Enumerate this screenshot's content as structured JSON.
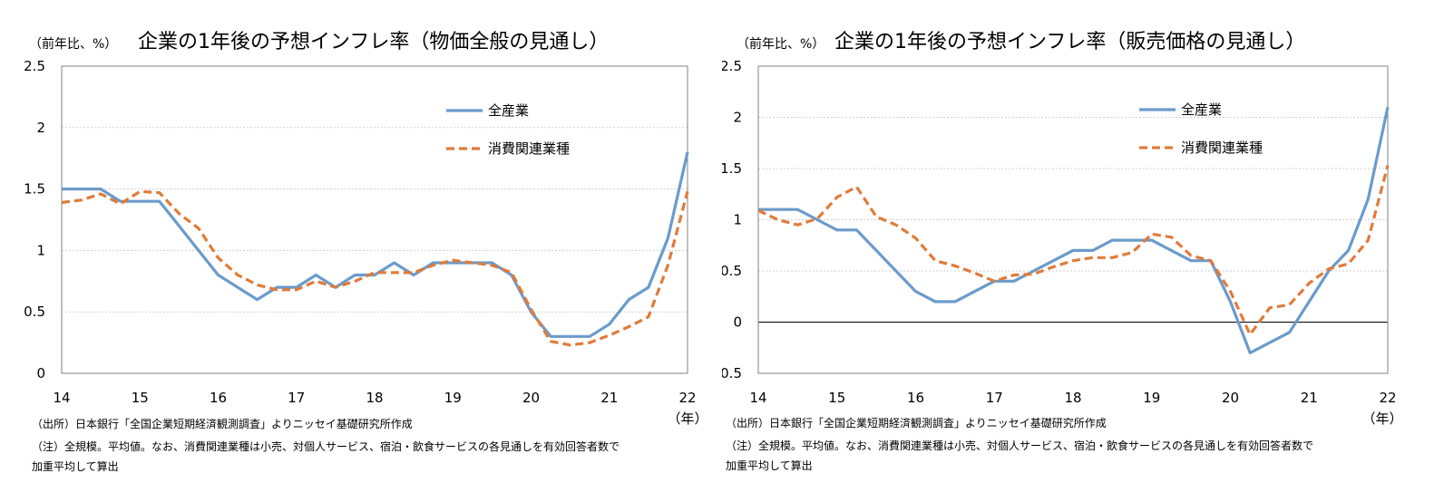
{
  "colors": {
    "all": "#6b9bcb",
    "consumer": "#e07b3a",
    "grid": "#cfcfcf",
    "axis": "#000000"
  },
  "panels": [
    {
      "unit_label": "（前年比、%）",
      "title": "企業の1年後の予想インフレ率（物価全般の見通し）",
      "source": "（出所）日本銀行「全国企業短期経済観測調査」よりニッセイ基礎研究所作成",
      "note_line1": "（注）全規模。平均値。なお、消費関連業種は小売、対個人サービス、宿泊・飲食サービスの各見通しを有効回答者数で",
      "note_line2": "加重平均して算出"
    },
    {
      "unit_label": "（前年比、%）",
      "title": "企業の1年後の予想インフレ率（販売価格の見通し）",
      "source": "（出所）日本銀行「全国企業短期経済観測調査」よりニッセイ基礎研究所作成",
      "note_line1": "（注）全規模。平均値。なお、消費関連業種は小売、対個人サービス、宿泊・飲食サービスの各見通しを有効回答者数で",
      "note_line2": "加重平均して算出"
    }
  ],
  "chart_data": [
    {
      "type": "line",
      "title": "企業の1年後の予想インフレ率（物価全般の見通し）",
      "ylabel": "（前年比、%）",
      "xlabel": "（年）",
      "xlim": [
        14,
        22
      ],
      "ylim": [
        0,
        2.5
      ],
      "yticks": [
        "0",
        "0.5",
        "1",
        "1.5",
        "2",
        "2.5"
      ],
      "xticks": [
        "14",
        "15",
        "16",
        "17",
        "18",
        "19",
        "20",
        "21",
        "22"
      ],
      "grid": true,
      "legend": "top-right",
      "x": [
        14,
        14.25,
        14.5,
        14.75,
        15,
        15.25,
        15.5,
        15.75,
        16,
        16.25,
        16.5,
        16.75,
        17,
        17.25,
        17.5,
        17.75,
        18,
        18.25,
        18.5,
        18.75,
        19,
        19.25,
        19.5,
        19.75,
        20,
        20.25,
        20.5,
        20.75,
        21,
        21.25,
        21.5,
        21.75,
        22
      ],
      "series": [
        {
          "name": "全産業",
          "style": "solid",
          "values": [
            1.5,
            1.5,
            1.5,
            1.4,
            1.4,
            1.4,
            1.2,
            1.0,
            0.8,
            0.7,
            0.6,
            0.7,
            0.7,
            0.8,
            0.7,
            0.8,
            0.8,
            0.9,
            0.8,
            0.9,
            0.9,
            0.9,
            0.9,
            0.8,
            0.5,
            0.3,
            0.3,
            0.3,
            0.4,
            0.6,
            0.7,
            1.1,
            1.8
          ]
        },
        {
          "name": "消費関連業種",
          "style": "dashed",
          "values": [
            1.39,
            1.41,
            1.46,
            1.38,
            1.48,
            1.47,
            1.3,
            1.18,
            0.94,
            0.8,
            0.72,
            0.68,
            0.68,
            0.75,
            0.7,
            0.75,
            0.82,
            0.82,
            0.82,
            0.88,
            0.92,
            0.9,
            0.88,
            0.82,
            0.52,
            0.26,
            0.23,
            0.25,
            0.31,
            0.38,
            0.46,
            0.88,
            1.48
          ]
        }
      ]
    },
    {
      "type": "line",
      "title": "企業の1年後の予想インフレ率（販売価格の見通し）",
      "ylabel": "（前年比、%）",
      "xlabel": "（年）",
      "xlim": [
        14,
        22
      ],
      "ylim": [
        -0.5,
        2.5
      ],
      "yticks": [
        "-0.5",
        "0",
        "0.5",
        "1",
        "1.5",
        "2",
        "2.5"
      ],
      "xticks": [
        "14",
        "15",
        "16",
        "17",
        "18",
        "19",
        "20",
        "21",
        "22"
      ],
      "grid": true,
      "legend": "top-right",
      "x": [
        14,
        14.25,
        14.5,
        14.75,
        15,
        15.25,
        15.5,
        15.75,
        16,
        16.25,
        16.5,
        16.75,
        17,
        17.25,
        17.5,
        17.75,
        18,
        18.25,
        18.5,
        18.75,
        19,
        19.25,
        19.5,
        19.75,
        20,
        20.25,
        20.5,
        20.75,
        21,
        21.25,
        21.5,
        21.75,
        22
      ],
      "series": [
        {
          "name": "全産業",
          "style": "solid",
          "values": [
            1.1,
            1.1,
            1.1,
            1.0,
            0.9,
            0.9,
            0.7,
            0.5,
            0.3,
            0.2,
            0.2,
            0.3,
            0.4,
            0.4,
            0.5,
            0.6,
            0.7,
            0.7,
            0.8,
            0.8,
            0.8,
            0.7,
            0.6,
            0.6,
            0.2,
            -0.3,
            -0.2,
            -0.1,
            0.2,
            0.5,
            0.7,
            1.2,
            2.1
          ]
        },
        {
          "name": "消費関連業種",
          "style": "dashed",
          "values": [
            1.09,
            1.0,
            0.95,
            1.01,
            1.22,
            1.32,
            1.03,
            0.95,
            0.82,
            0.6,
            0.55,
            0.48,
            0.4,
            0.46,
            0.47,
            0.54,
            0.6,
            0.63,
            0.63,
            0.68,
            0.86,
            0.83,
            0.65,
            0.6,
            0.3,
            -0.12,
            0.14,
            0.17,
            0.38,
            0.52,
            0.57,
            0.8,
            1.53
          ]
        }
      ]
    }
  ]
}
